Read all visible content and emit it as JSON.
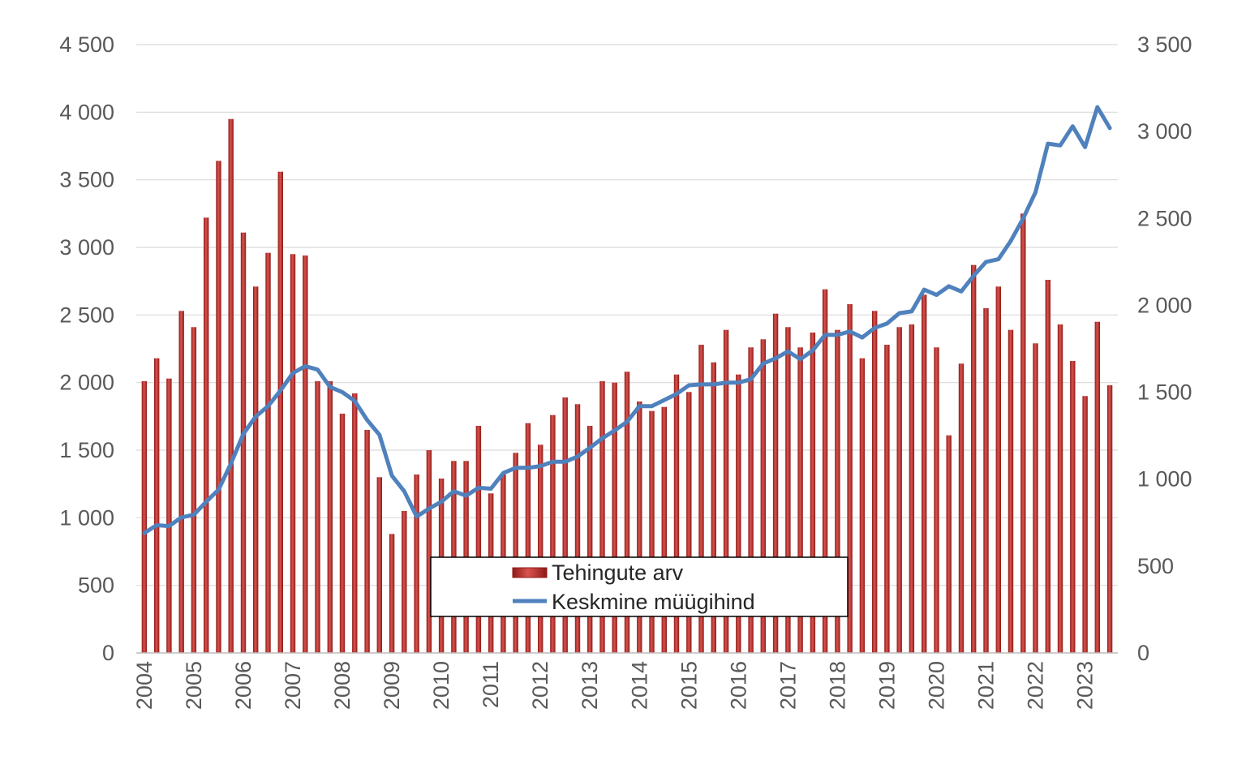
{
  "chart_data": {
    "type": "bar",
    "title": "",
    "xlabel": "",
    "ylabel": "",
    "y2label": "",
    "grid": true,
    "legend_placement": "bottom-center",
    "ylim": [
      0,
      4500
    ],
    "y2lim": [
      0,
      3500
    ],
    "yticks": [
      "0",
      "500",
      "1 000",
      "1 500",
      "2 000",
      "2 500",
      "3 000",
      "3 500",
      "4 000",
      "4 500"
    ],
    "y2ticks": [
      "0",
      "500",
      "1 000",
      "1 500",
      "2 000",
      "2 500",
      "3 000",
      "3 500"
    ],
    "year_labels": [
      "2004",
      "2005",
      "2006",
      "2007",
      "2008",
      "2009",
      "2010",
      "2011",
      "2012",
      "2013",
      "2014",
      "2015",
      "2016",
      "2017",
      "2018",
      "2019",
      "2020",
      "2021",
      "2022",
      "2023"
    ],
    "quarters_per_year": 4,
    "series": [
      {
        "name": "Tehingute arv",
        "kind": "bar",
        "axis": "left",
        "color": "#b92b27",
        "values": [
          2010,
          2180,
          2030,
          2530,
          2410,
          3220,
          3640,
          3950,
          3110,
          2710,
          2960,
          3560,
          2950,
          2940,
          2010,
          2010,
          1770,
          1920,
          1650,
          1300,
          880,
          1050,
          1320,
          1500,
          1290,
          1420,
          1420,
          1680,
          1180,
          1320,
          1480,
          1700,
          1540,
          1760,
          1890,
          1840,
          1680,
          2010,
          2000,
          2080,
          1860,
          1790,
          1820,
          2060,
          1930,
          2280,
          2150,
          2390,
          2060,
          2260,
          2320,
          2510,
          2410,
          2260,
          2370,
          2690,
          2390,
          2580,
          2180,
          2530,
          2280,
          2410,
          2430,
          2650,
          2260,
          1610,
          2140,
          2870,
          2550,
          2710,
          2390,
          3250,
          2290,
          2760,
          2430,
          2160,
          1900,
          2450,
          1980
        ]
      },
      {
        "name": "Keskmine müügihind",
        "kind": "line",
        "axis": "right",
        "color": "#4f81bd",
        "values": [
          690,
          735,
          730,
          780,
          795,
          870,
          940,
          1090,
          1260,
          1360,
          1420,
          1510,
          1610,
          1650,
          1630,
          1530,
          1500,
          1450,
          1340,
          1255,
          1020,
          930,
          785,
          830,
          870,
          930,
          905,
          950,
          945,
          1035,
          1065,
          1065,
          1075,
          1100,
          1100,
          1130,
          1180,
          1235,
          1280,
          1330,
          1420,
          1420,
          1455,
          1490,
          1540,
          1545,
          1545,
          1555,
          1555,
          1575,
          1665,
          1695,
          1735,
          1690,
          1740,
          1830,
          1830,
          1850,
          1815,
          1870,
          1895,
          1955,
          1965,
          2090,
          2060,
          2110,
          2080,
          2170,
          2250,
          2265,
          2370,
          2500,
          2650,
          2930,
          2920,
          3030,
          2910,
          3140,
          3020
        ]
      }
    ]
  }
}
